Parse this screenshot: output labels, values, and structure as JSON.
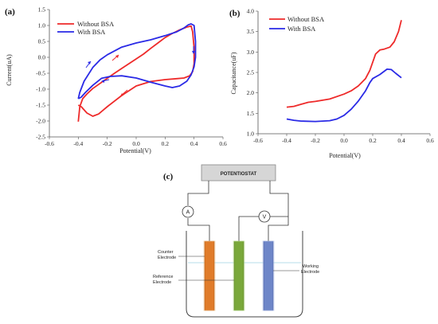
{
  "panel_labels": {
    "a": "(a)",
    "b": "(b)",
    "c": "(c)"
  },
  "chart_data": [
    {
      "type": "line",
      "panel": "(a)",
      "xlabel": "Potential(V)",
      "ylabel": "Current(uA)",
      "xlim": [
        -0.6,
        0.6
      ],
      "ylim": [
        -2.5,
        1.5
      ],
      "xticks": [
        -0.6,
        -0.4,
        -0.2,
        0.0,
        0.2,
        0.4,
        0.6
      ],
      "yticks": [
        -2.5,
        -2.0,
        -1.5,
        -1.0,
        -0.5,
        0.0,
        0.5,
        1.0,
        1.5
      ],
      "xtick_labels": [
        "-0.6",
        "-0.4",
        "-0.2",
        "0.0",
        "0.2",
        "0.4",
        "0.6"
      ],
      "ytick_labels": [
        "-2.5",
        "-2.0",
        "-1.5",
        "-1.0",
        "-0.5",
        "0.0",
        "0.5",
        "1.0",
        "1.5"
      ],
      "legend_position": "top-left",
      "series": [
        {
          "name": "Without BSA",
          "color": "#ee2a2a",
          "points": [
            [
              -0.4,
              -2.02
            ],
            [
              -0.39,
              -1.55
            ],
            [
              -0.37,
              -1.3
            ],
            [
              -0.34,
              -1.15
            ],
            [
              -0.3,
              -0.98
            ],
            [
              -0.25,
              -0.82
            ],
            [
              -0.2,
              -0.66
            ],
            [
              -0.15,
              -0.5
            ],
            [
              -0.1,
              -0.35
            ],
            [
              -0.05,
              -0.2
            ],
            [
              0.0,
              -0.05
            ],
            [
              0.05,
              0.1
            ],
            [
              0.1,
              0.28
            ],
            [
              0.15,
              0.45
            ],
            [
              0.2,
              0.62
            ],
            [
              0.25,
              0.75
            ],
            [
              0.3,
              0.86
            ],
            [
              0.35,
              0.95
            ],
            [
              0.38,
              0.98
            ],
            [
              0.39,
              0.8
            ],
            [
              0.4,
              0.3
            ],
            [
              0.4,
              -0.2
            ],
            [
              0.39,
              -0.45
            ],
            [
              0.37,
              -0.58
            ],
            [
              0.33,
              -0.65
            ],
            [
              0.28,
              -0.67
            ],
            [
              0.2,
              -0.7
            ],
            [
              0.1,
              -0.76
            ],
            [
              0.0,
              -0.9
            ],
            [
              -0.1,
              -1.2
            ],
            [
              -0.2,
              -1.55
            ],
            [
              -0.26,
              -1.78
            ],
            [
              -0.3,
              -1.85
            ],
            [
              -0.34,
              -1.75
            ],
            [
              -0.38,
              -1.55
            ],
            [
              -0.4,
              -1.5
            ]
          ]
        },
        {
          "name": "With BSA",
          "color": "#2a2ae6",
          "points": [
            [
              -0.4,
              -1.3
            ],
            [
              -0.39,
              -1.1
            ],
            [
              -0.36,
              -0.75
            ],
            [
              -0.3,
              -0.32
            ],
            [
              -0.25,
              -0.08
            ],
            [
              -0.2,
              0.08
            ],
            [
              -0.1,
              0.32
            ],
            [
              0.0,
              0.45
            ],
            [
              0.1,
              0.55
            ],
            [
              0.2,
              0.68
            ],
            [
              0.28,
              0.8
            ],
            [
              0.33,
              0.92
            ],
            [
              0.36,
              1.02
            ],
            [
              0.38,
              1.05
            ],
            [
              0.4,
              1.0
            ],
            [
              0.41,
              0.5
            ],
            [
              0.41,
              0.0
            ],
            [
              0.4,
              -0.3
            ],
            [
              0.38,
              -0.55
            ],
            [
              0.35,
              -0.75
            ],
            [
              0.3,
              -0.9
            ],
            [
              0.25,
              -0.95
            ],
            [
              0.2,
              -0.9
            ],
            [
              0.1,
              -0.78
            ],
            [
              0.0,
              -0.65
            ],
            [
              -0.1,
              -0.58
            ],
            [
              -0.18,
              -0.6
            ],
            [
              -0.24,
              -0.66
            ],
            [
              -0.3,
              -0.88
            ],
            [
              -0.35,
              -1.1
            ],
            [
              -0.38,
              -1.25
            ],
            [
              -0.4,
              -1.3
            ]
          ]
        }
      ]
    },
    {
      "type": "line",
      "panel": "(b)",
      "xlabel": "Potential(V)",
      "ylabel": "Capacitance(uF)",
      "xlim": [
        -0.6,
        0.6
      ],
      "ylim": [
        1.0,
        4.0
      ],
      "xticks": [
        -0.6,
        -0.4,
        -0.2,
        0.0,
        0.2,
        0.4,
        0.6
      ],
      "yticks": [
        1.0,
        1.5,
        2.0,
        2.5,
        3.0,
        3.5,
        4.0
      ],
      "xtick_labels": [
        "-0.6",
        "-0.4",
        "-0.2",
        "0.0",
        "0.2",
        "0.4",
        "0.6"
      ],
      "ytick_labels": [
        "1.0",
        "1.5",
        "2.0",
        "2.5",
        "3.0",
        "3.5",
        "4.0"
      ],
      "legend_position": "top-left",
      "series": [
        {
          "name": "Without BSA",
          "color": "#ee2a2a",
          "points": [
            [
              -0.4,
              1.65
            ],
            [
              -0.35,
              1.67
            ],
            [
              -0.3,
              1.72
            ],
            [
              -0.25,
              1.77
            ],
            [
              -0.2,
              1.79
            ],
            [
              -0.1,
              1.85
            ],
            [
              0.0,
              1.97
            ],
            [
              0.05,
              2.05
            ],
            [
              0.1,
              2.17
            ],
            [
              0.15,
              2.35
            ],
            [
              0.18,
              2.55
            ],
            [
              0.2,
              2.75
            ],
            [
              0.22,
              2.95
            ],
            [
              0.25,
              3.05
            ],
            [
              0.28,
              3.07
            ],
            [
              0.32,
              3.12
            ],
            [
              0.35,
              3.25
            ],
            [
              0.38,
              3.5
            ],
            [
              0.4,
              3.78
            ]
          ]
        },
        {
          "name": "With BSA",
          "color": "#2a2ae6",
          "points": [
            [
              -0.4,
              1.36
            ],
            [
              -0.35,
              1.33
            ],
            [
              -0.3,
              1.31
            ],
            [
              -0.2,
              1.3
            ],
            [
              -0.1,
              1.32
            ],
            [
              -0.05,
              1.36
            ],
            [
              0.0,
              1.45
            ],
            [
              0.05,
              1.6
            ],
            [
              0.1,
              1.8
            ],
            [
              0.15,
              2.05
            ],
            [
              0.18,
              2.25
            ],
            [
              0.2,
              2.35
            ],
            [
              0.25,
              2.45
            ],
            [
              0.3,
              2.58
            ],
            [
              0.33,
              2.57
            ],
            [
              0.36,
              2.48
            ],
            [
              0.4,
              2.37
            ]
          ]
        }
      ]
    }
  ],
  "diagram": {
    "potentiostat": "POTENTIOSTAT",
    "ammeter": "A",
    "voltmeter": "V",
    "counter_electrode": [
      "Counter",
      "Electrode"
    ],
    "reference_electrode": [
      "Reference",
      "Electrode"
    ],
    "working_electrode": [
      "Working",
      "Electrode"
    ],
    "colors": {
      "counter": "#e07c2a",
      "reference": "#7aa83a",
      "working": "#6e86c8"
    }
  }
}
